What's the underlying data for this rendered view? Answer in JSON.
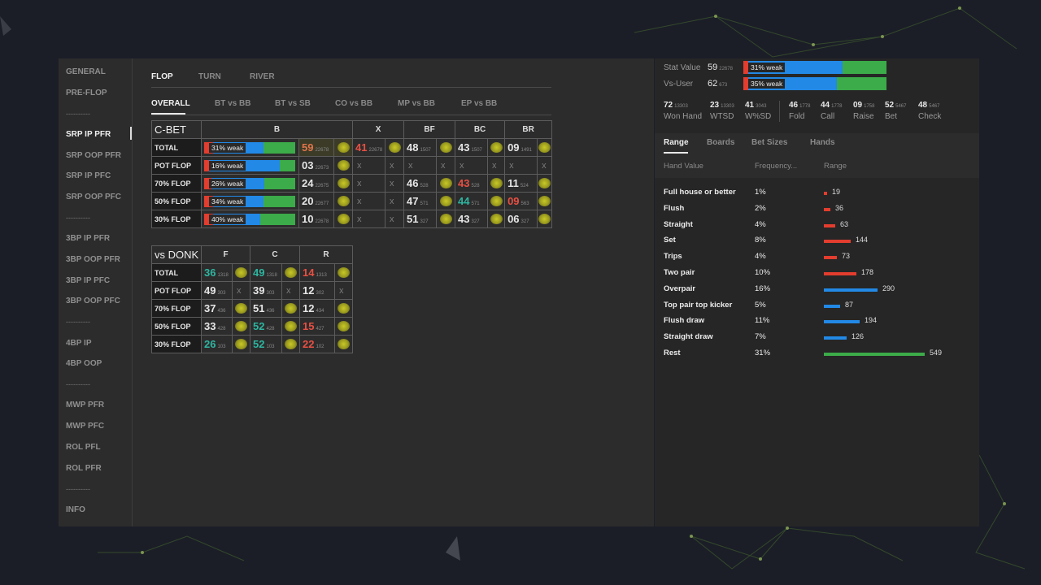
{
  "sidebar": {
    "items": [
      {
        "label": "GENERAL"
      },
      {
        "label": "PRE-FLOP"
      },
      {
        "label": "----------"
      },
      {
        "label": "SRP IP PFR",
        "active": true
      },
      {
        "label": "SRP OOP PFR"
      },
      {
        "label": "SRP IP PFC"
      },
      {
        "label": "SRP OOP PFC"
      },
      {
        "label": "----------"
      },
      {
        "label": "3BP IP PFR"
      },
      {
        "label": "3BP OOP PFR"
      },
      {
        "label": "3BP IP PFC"
      },
      {
        "label": "3BP OOP PFC"
      },
      {
        "label": "----------"
      },
      {
        "label": "4BP IP"
      },
      {
        "label": "4BP OOP"
      },
      {
        "label": "----------"
      },
      {
        "label": "MWP PFR"
      },
      {
        "label": "MWP PFC"
      },
      {
        "label": "ROL PFL"
      },
      {
        "label": "ROL PFR"
      },
      {
        "label": "----------"
      },
      {
        "label": "INFO"
      }
    ]
  },
  "street_tabs": [
    "FLOP",
    "TURN",
    "RIVER"
  ],
  "position_tabs": [
    "OVERALL",
    "BT vs BB",
    "BT vs SB",
    "CO vs BB",
    "MP vs BB",
    "EP vs BB"
  ],
  "cbet": {
    "title": "C-BET",
    "headers": [
      "B",
      "X",
      "BF",
      "BC",
      "BR"
    ],
    "rows": [
      {
        "label": "TOTAL",
        "bar": {
          "red": 0.1,
          "blue": 0.55,
          "green": 0.35
        },
        "bar_label": "31% weak",
        "b": {
          "v": "59",
          "s": "22678",
          "color": "orange"
        },
        "x": {
          "v": "41",
          "s": "22678",
          "color": "red"
        },
        "bf": {
          "v": "48",
          "s": "1507"
        },
        "bc": {
          "v": "43",
          "s": "1507"
        },
        "br": {
          "v": "09",
          "s": "1491"
        }
      },
      {
        "label": "POT FLOP",
        "bar": {
          "red": 0.05,
          "blue": 0.78,
          "green": 0.17
        },
        "bar_label": "16% weak",
        "b": {
          "v": "03",
          "s": "22673"
        },
        "x": {
          "v": "x"
        },
        "bf": {
          "v": "x"
        },
        "bc": {
          "v": "x"
        },
        "br": {
          "v": "x"
        }
      },
      {
        "label": "70% FLOP",
        "bar": {
          "red": 0.08,
          "blue": 0.58,
          "green": 0.34
        },
        "bar_label": "26% weak",
        "b": {
          "v": "24",
          "s": "22675"
        },
        "x": {
          "v": "x"
        },
        "bf": {
          "v": "46",
          "s": "528"
        },
        "bc": {
          "v": "43",
          "s": "528",
          "color": "red"
        },
        "br": {
          "v": "11",
          "s": "524"
        }
      },
      {
        "label": "50% FLOP",
        "bar": {
          "red": 0.1,
          "blue": 0.55,
          "green": 0.35
        },
        "bar_label": "34% weak",
        "b": {
          "v": "20",
          "s": "22677"
        },
        "x": {
          "v": "x"
        },
        "bf": {
          "v": "47",
          "s": "571"
        },
        "bc": {
          "v": "44",
          "s": "571",
          "color": "teal"
        },
        "br": {
          "v": "09",
          "s": "563",
          "color": "red"
        }
      },
      {
        "label": "30% FLOP",
        "bar": {
          "red": 0.1,
          "blue": 0.52,
          "green": 0.38
        },
        "bar_label": "40% weak",
        "b": {
          "v": "10",
          "s": "22678"
        },
        "x": {
          "v": "x"
        },
        "bf": {
          "v": "51",
          "s": "327"
        },
        "bc": {
          "v": "43",
          "s": "327"
        },
        "br": {
          "v": "06",
          "s": "327"
        }
      }
    ]
  },
  "donk": {
    "title": "vs DONK",
    "headers": [
      "F",
      "C",
      "R"
    ],
    "rows": [
      {
        "label": "TOTAL",
        "f": {
          "v": "36",
          "s": "1318",
          "color": "teal"
        },
        "c": {
          "v": "49",
          "s": "1318",
          "color": "teal"
        },
        "r": {
          "v": "14",
          "s": "1313",
          "color": "red"
        }
      },
      {
        "label": "POT FLOP",
        "f": {
          "v": "49",
          "s": "303"
        },
        "c": {
          "v": "39",
          "s": "303"
        },
        "r": {
          "v": "12",
          "s": "302"
        },
        "noblob": true
      },
      {
        "label": "70% FLOP",
        "f": {
          "v": "37",
          "s": "436"
        },
        "c": {
          "v": "51",
          "s": "436"
        },
        "r": {
          "v": "12",
          "s": "434"
        }
      },
      {
        "label": "50% FLOP",
        "f": {
          "v": "33",
          "s": "428",
          "color": ""
        },
        "c": {
          "v": "52",
          "s": "428",
          "color": "teal"
        },
        "r": {
          "v": "15",
          "s": "427",
          "color": "red"
        }
      },
      {
        "label": "30% FLOP",
        "f": {
          "v": "26",
          "s": "103",
          "color": "teal"
        },
        "c": {
          "v": "52",
          "s": "103",
          "color": "teal"
        },
        "r": {
          "v": "22",
          "s": "102",
          "color": "red"
        }
      }
    ]
  },
  "right": {
    "stat_value": {
      "label": "Stat Value",
      "v": "59",
      "s": "22678",
      "bar_label": "31% weak"
    },
    "vs_user": {
      "label": "Vs-User",
      "v": "62",
      "s": "673",
      "bar_label": "35% weak"
    },
    "stats": [
      {
        "v": "72",
        "s": "13303",
        "l": "Won Hand"
      },
      {
        "v": "23",
        "s": "13303",
        "l": "WTSD"
      },
      {
        "v": "41",
        "s": "3043",
        "l": "W%SD"
      },
      {
        "v": "46",
        "s": "1778",
        "l": "Fold"
      },
      {
        "v": "44",
        "s": "1778",
        "l": "Call"
      },
      {
        "v": "09",
        "s": "1758",
        "l": "Raise"
      },
      {
        "v": "52",
        "s": "5467",
        "l": "Bet"
      },
      {
        "v": "48",
        "s": "5467",
        "l": "Check"
      }
    ],
    "tabs": [
      "Range",
      "Boards",
      "Bet Sizes",
      "Hands"
    ],
    "col_headers": [
      "Hand Value",
      "Frequency...",
      "Range"
    ],
    "hands": [
      {
        "name": "Full house or better",
        "freq": "1%",
        "count": "19",
        "color": "#e23d2e"
      },
      {
        "name": "Flush",
        "freq": "2%",
        "count": "36",
        "color": "#e23d2e"
      },
      {
        "name": "Straight",
        "freq": "4%",
        "count": "63",
        "color": "#e23d2e"
      },
      {
        "name": "Set",
        "freq": "8%",
        "count": "144",
        "color": "#e23d2e"
      },
      {
        "name": "Trips",
        "freq": "4%",
        "count": "73",
        "color": "#e23d2e"
      },
      {
        "name": "Two pair",
        "freq": "10%",
        "count": "178",
        "color": "#e23d2e"
      },
      {
        "name": "Overpair",
        "freq": "16%",
        "count": "290",
        "color": "#2289e6"
      },
      {
        "name": "Top pair top kicker",
        "freq": "5%",
        "count": "87",
        "color": "#2289e6"
      },
      {
        "name": "Flush draw",
        "freq": "11%",
        "count": "194",
        "color": "#2289e6"
      },
      {
        "name": "Straight draw",
        "freq": "7%",
        "count": "126",
        "color": "#2289e6"
      },
      {
        "name": "Rest",
        "freq": "31%",
        "count": "549",
        "color": "#3cab49"
      }
    ]
  }
}
